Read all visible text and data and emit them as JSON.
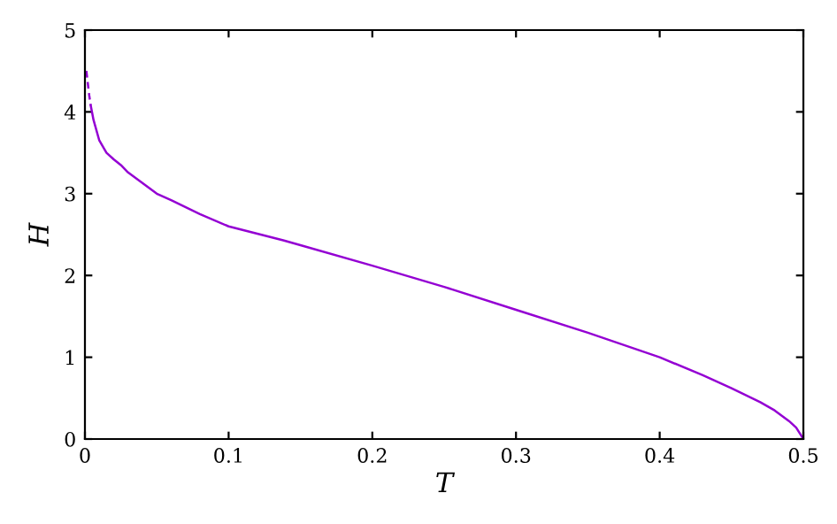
{
  "chart_data": {
    "type": "line",
    "xlabel": "T",
    "ylabel": "H",
    "xlim": [
      0,
      0.5
    ],
    "ylim": [
      0,
      5
    ],
    "xticks": [
      0,
      0.1,
      0.2,
      0.3,
      0.4,
      0.5
    ],
    "yticks": [
      0,
      1,
      2,
      3,
      4,
      5
    ],
    "grid": false,
    "legend": false,
    "series": [
      {
        "color": "#9400d3",
        "line_style": "dashed",
        "x": [
          0.001,
          0.002,
          0.003,
          0.004
        ],
        "values": [
          4.5,
          4.35,
          4.2,
          4.08
        ]
      },
      {
        "color": "#9400d3",
        "line_style": "solid",
        "x": [
          0.004,
          0.006,
          0.01,
          0.015,
          0.02,
          0.025,
          0.03,
          0.04,
          0.05,
          0.06,
          0.08,
          0.1,
          0.138,
          0.15,
          0.2,
          0.25,
          0.3,
          0.35,
          0.4,
          0.43,
          0.45,
          0.47,
          0.48,
          0.49,
          0.495,
          0.5
        ],
        "values": [
          4.08,
          3.9,
          3.65,
          3.5,
          3.42,
          3.35,
          3.26,
          3.13,
          3.0,
          2.92,
          2.75,
          2.6,
          2.43,
          2.37,
          2.12,
          1.86,
          1.58,
          1.3,
          1.0,
          0.78,
          0.62,
          0.45,
          0.35,
          0.22,
          0.14,
          0.0
        ]
      }
    ]
  }
}
